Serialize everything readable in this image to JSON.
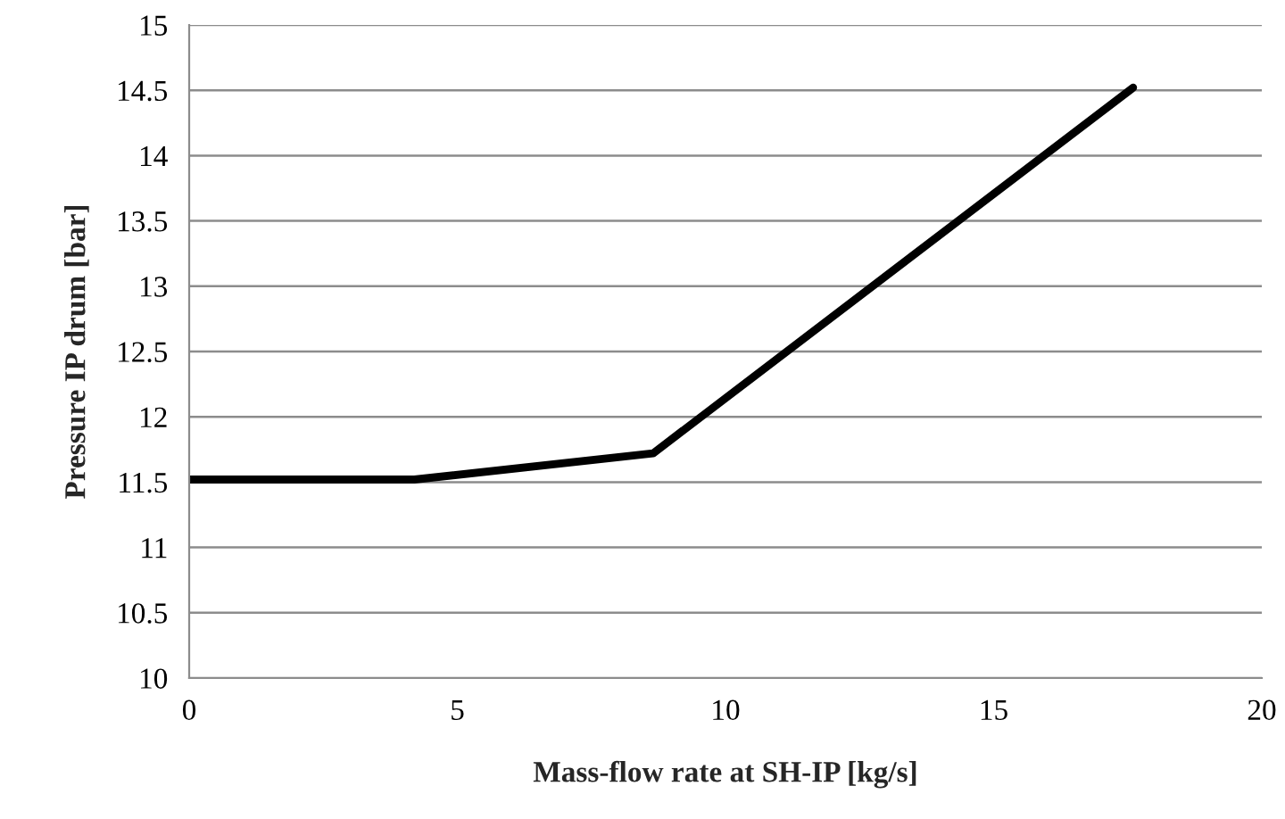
{
  "chart_data": {
    "type": "line",
    "xlabel": "Mass-flow rate at SH-IP [kg/s]",
    "ylabel": "Pressure IP drum [bar]",
    "x": [
      0,
      4.2,
      8.65,
      17.6
    ],
    "series": [
      {
        "color": "#000000",
        "values": [
          11.52,
          11.52,
          11.72,
          14.52
        ]
      }
    ],
    "xlim": [
      0,
      20
    ],
    "xticks": [
      0,
      5,
      10,
      15,
      20
    ],
    "ylim": [
      10,
      15
    ],
    "yticks": [
      10,
      10.5,
      11,
      11.5,
      12,
      12.5,
      13,
      13.5,
      14,
      14.5,
      15
    ],
    "grid": "y",
    "line_style": "solid",
    "marker": "none"
  }
}
